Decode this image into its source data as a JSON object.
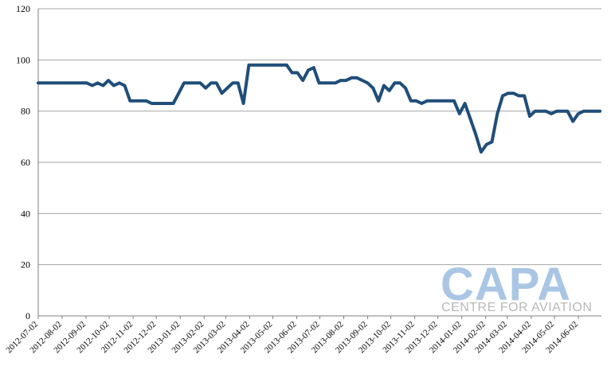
{
  "chart_data": {
    "type": "line",
    "title": "",
    "xlabel": "",
    "ylabel": "",
    "ylim": [
      0,
      120
    ],
    "yticks": [
      0,
      20,
      40,
      60,
      80,
      100,
      120
    ],
    "grid": true,
    "legend": "none",
    "x_tick_labels": [
      "2012-07-02",
      "2012-08-02",
      "2012-09-02",
      "2012-10-02",
      "2012-11-02",
      "2012-12-02",
      "2013-01-02",
      "2013-02-02",
      "2013-03-02",
      "2013-04-02",
      "2013-05-02",
      "2013-06-02",
      "2013-07-02",
      "2013-08-02",
      "2013-09-02",
      "2013-10-02",
      "2013-11-02",
      "2013-12-02",
      "2014-01-02",
      "2014-02-02",
      "2014-03-02",
      "2014-04-02",
      "2014-05-02",
      "2014-06-02"
    ],
    "x_range": [
      "2012-07-02",
      "2014-07-02"
    ],
    "series": [
      {
        "color": "#1f4e79",
        "points": [
          [
            "2012-07-02",
            91
          ],
          [
            "2012-07-09",
            91
          ],
          [
            "2012-07-16",
            91
          ],
          [
            "2012-07-23",
            91
          ],
          [
            "2012-07-30",
            91
          ],
          [
            "2012-08-06",
            91
          ],
          [
            "2012-08-13",
            91
          ],
          [
            "2012-08-20",
            91
          ],
          [
            "2012-08-27",
            91
          ],
          [
            "2012-09-03",
            91
          ],
          [
            "2012-09-10",
            90
          ],
          [
            "2012-09-17",
            91
          ],
          [
            "2012-09-24",
            90
          ],
          [
            "2012-10-01",
            92
          ],
          [
            "2012-10-08",
            90
          ],
          [
            "2012-10-15",
            91
          ],
          [
            "2012-10-22",
            90
          ],
          [
            "2012-10-29",
            84
          ],
          [
            "2012-11-05",
            84
          ],
          [
            "2012-11-12",
            84
          ],
          [
            "2012-11-19",
            84
          ],
          [
            "2012-11-26",
            83
          ],
          [
            "2012-12-03",
            83
          ],
          [
            "2012-12-10",
            83
          ],
          [
            "2012-12-17",
            83
          ],
          [
            "2012-12-24",
            83
          ],
          [
            "2012-12-31",
            87
          ],
          [
            "2013-01-07",
            91
          ],
          [
            "2013-01-14",
            91
          ],
          [
            "2013-01-21",
            91
          ],
          [
            "2013-01-28",
            91
          ],
          [
            "2013-02-04",
            89
          ],
          [
            "2013-02-11",
            91
          ],
          [
            "2013-02-18",
            91
          ],
          [
            "2013-02-25",
            87
          ],
          [
            "2013-03-04",
            89
          ],
          [
            "2013-03-11",
            91
          ],
          [
            "2013-03-18",
            91
          ],
          [
            "2013-03-25",
            83
          ],
          [
            "2013-04-01",
            98
          ],
          [
            "2013-04-08",
            98
          ],
          [
            "2013-04-15",
            98
          ],
          [
            "2013-04-22",
            98
          ],
          [
            "2013-04-29",
            98
          ],
          [
            "2013-05-06",
            98
          ],
          [
            "2013-05-13",
            98
          ],
          [
            "2013-05-20",
            98
          ],
          [
            "2013-05-27",
            95
          ],
          [
            "2013-06-03",
            95
          ],
          [
            "2013-06-10",
            92
          ],
          [
            "2013-06-17",
            96
          ],
          [
            "2013-06-24",
            97
          ],
          [
            "2013-07-01",
            91
          ],
          [
            "2013-07-08",
            91
          ],
          [
            "2013-07-15",
            91
          ],
          [
            "2013-07-22",
            91
          ],
          [
            "2013-07-29",
            92
          ],
          [
            "2013-08-05",
            92
          ],
          [
            "2013-08-12",
            93
          ],
          [
            "2013-08-19",
            93
          ],
          [
            "2013-08-26",
            92
          ],
          [
            "2013-09-02",
            91
          ],
          [
            "2013-09-09",
            89
          ],
          [
            "2013-09-16",
            84
          ],
          [
            "2013-09-23",
            90
          ],
          [
            "2013-09-30",
            88
          ],
          [
            "2013-10-07",
            91
          ],
          [
            "2013-10-14",
            91
          ],
          [
            "2013-10-21",
            89
          ],
          [
            "2013-10-28",
            84
          ],
          [
            "2013-11-04",
            84
          ],
          [
            "2013-11-11",
            83
          ],
          [
            "2013-11-18",
            84
          ],
          [
            "2013-11-25",
            84
          ],
          [
            "2013-12-02",
            84
          ],
          [
            "2013-12-09",
            84
          ],
          [
            "2013-12-16",
            84
          ],
          [
            "2013-12-23",
            84
          ],
          [
            "2013-12-30",
            79
          ],
          [
            "2014-01-06",
            83
          ],
          [
            "2014-01-13",
            77
          ],
          [
            "2014-01-20",
            71
          ],
          [
            "2014-01-27",
            64
          ],
          [
            "2014-02-03",
            67
          ],
          [
            "2014-02-10",
            68
          ],
          [
            "2014-02-17",
            79
          ],
          [
            "2014-02-24",
            86
          ],
          [
            "2014-03-03",
            87
          ],
          [
            "2014-03-10",
            87
          ],
          [
            "2014-03-17",
            86
          ],
          [
            "2014-03-24",
            86
          ],
          [
            "2014-03-31",
            78
          ],
          [
            "2014-04-07",
            80
          ],
          [
            "2014-04-14",
            80
          ],
          [
            "2014-04-21",
            80
          ],
          [
            "2014-04-28",
            79
          ],
          [
            "2014-05-05",
            80
          ],
          [
            "2014-05-12",
            80
          ],
          [
            "2014-05-19",
            80
          ],
          [
            "2014-05-26",
            76
          ],
          [
            "2014-06-02",
            79
          ],
          [
            "2014-06-09",
            80
          ],
          [
            "2014-06-16",
            80
          ],
          [
            "2014-06-23",
            80
          ],
          [
            "2014-06-30",
            80
          ]
        ]
      }
    ]
  },
  "watermark": {
    "title": "CAPA",
    "subtitle": "CENTRE FOR AVIATION",
    "color": "#a9c6e4"
  }
}
